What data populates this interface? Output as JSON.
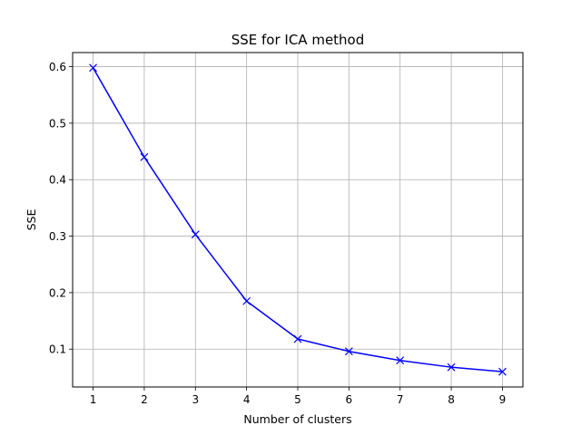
{
  "chart_data": {
    "type": "line",
    "title": "SSE for ICA method",
    "xlabel": "Number of clusters",
    "ylabel": "SSE",
    "x": [
      1,
      2,
      3,
      4,
      5,
      6,
      7,
      8,
      9
    ],
    "series": [
      {
        "values": [
          0.598,
          0.44,
          0.303,
          0.185,
          0.118,
          0.096,
          0.08,
          0.068,
          0.06
        ],
        "color": "#0000ff",
        "marker": "x"
      }
    ],
    "xticks": [
      "1",
      "2",
      "3",
      "4",
      "5",
      "6",
      "7",
      "8",
      "9"
    ],
    "yticks": [
      "0.1",
      "0.2",
      "0.3",
      "0.4",
      "0.5",
      "0.6"
    ],
    "xlim": [
      0.6,
      9.4
    ],
    "ylim": [
      0.033,
      0.625
    ],
    "grid": true
  }
}
